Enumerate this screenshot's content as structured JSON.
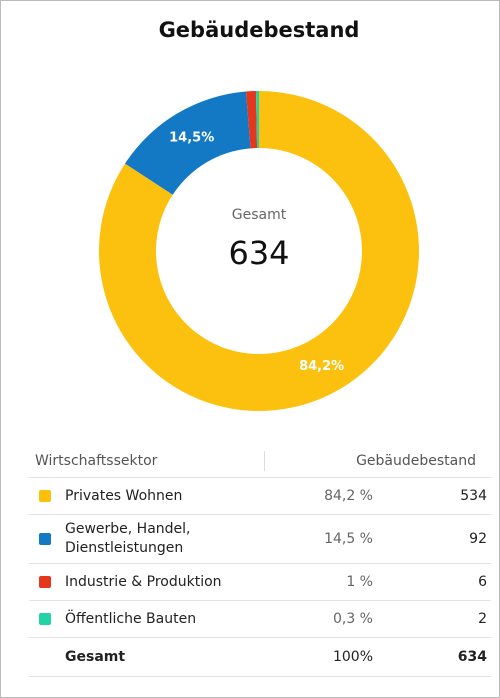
{
  "chart_data": {
    "type": "donut",
    "title": "Gebäudebestand",
    "center_label": "Gesamt",
    "center_value": 634,
    "categories": [
      "Privates Wohnen",
      "Gewerbe, Handel, Dienstleistungen",
      "Industrie & Produktion",
      "Öffentliche Bauten"
    ],
    "values": [
      84.2,
      14.5,
      1,
      0.3
    ],
    "value_labels": [
      "84,2%",
      "14,5%",
      null,
      null
    ],
    "colors": [
      "#fcc10e",
      "#1479c4",
      "#e5371e",
      "#22d3a5"
    ]
  },
  "table": {
    "columns": [
      "Wirtschaftssektor",
      "Gebäudebestand"
    ],
    "rows": [
      {
        "share": "84,2 %",
        "count": 534
      },
      {
        "share": "14,5 %",
        "count": 92
      },
      {
        "share": "1 %",
        "count": 6
      },
      {
        "share": "0,3 %",
        "count": 2
      }
    ],
    "total": {
      "label": "Gesamt",
      "share": "100%",
      "count": 634
    }
  }
}
